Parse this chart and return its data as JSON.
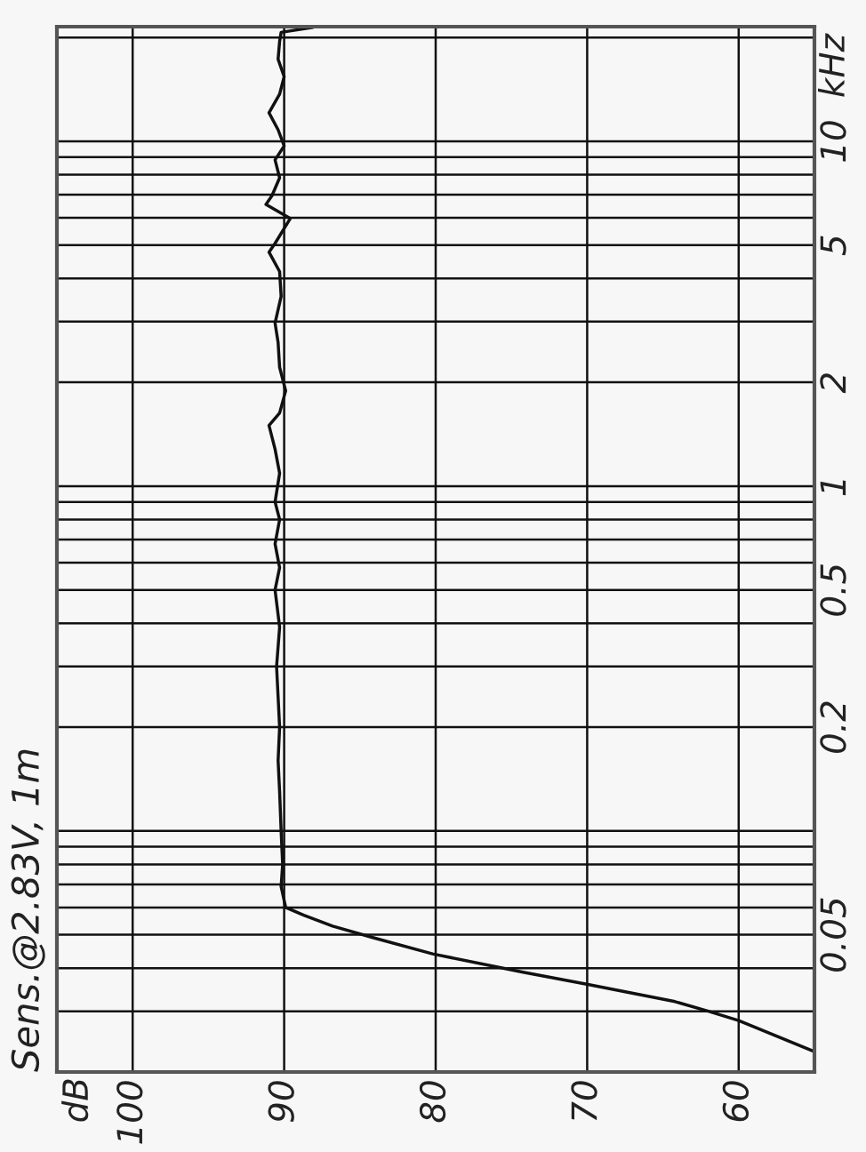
{
  "chart_data": {
    "type": "line",
    "title": "Sens.@2.83V, 1m",
    "ylabel": "kHz",
    "annotations": [
      "dB"
    ],
    "x": [
      55.1,
      60.0,
      62.0,
      64.2,
      70.1,
      74.3,
      80.2,
      84.1,
      86.8,
      88.7,
      89.9,
      90.2,
      90.1,
      90.2,
      90.3,
      90.4,
      90.3,
      90.5,
      90.3,
      90.6,
      90.3,
      90.6,
      90.3,
      90.6,
      90.3,
      90.6,
      91.0,
      90.3,
      89.9,
      90.3,
      90.4,
      90.6,
      90.2,
      90.3,
      91.0,
      90.6,
      89.6,
      91.2,
      90.8,
      90.3,
      90.6,
      90.0,
      90.4,
      91.0,
      90.3,
      90.0,
      90.4,
      90.3,
      90.2,
      88.1
    ],
    "series": [
      {
        "color": "#111111",
        "values": [
          0.023,
          0.0282,
          0.03,
          0.032,
          0.036,
          0.039,
          0.044,
          0.049,
          0.053,
          0.057,
          0.06,
          0.069,
          0.08,
          0.1,
          0.13,
          0.16,
          0.2,
          0.3,
          0.39,
          0.5,
          0.58,
          0.68,
          0.8,
          0.9,
          1.09,
          1.28,
          1.5,
          1.63,
          1.89,
          2.21,
          2.61,
          2.97,
          3.55,
          4.19,
          4.77,
          5.06,
          5.97,
          6.56,
          6.96,
          7.84,
          8.83,
          9.7,
          10.8,
          12.1,
          13.7,
          15.4,
          17.3,
          19.5,
          20.7,
          21.4
        ]
      }
    ],
    "xlim": [
      105,
      55
    ],
    "ylim": [
      0.02,
      21.5
    ],
    "xticks": [
      100,
      90,
      80,
      70,
      60
    ],
    "yticks": [
      {
        "value": 0.03,
        "label": null
      },
      {
        "value": 0.04,
        "label": null
      },
      0.05,
      {
        "value": 0.06,
        "label": null
      },
      {
        "value": 0.07,
        "label": null
      },
      {
        "value": 0.08,
        "label": null
      },
      {
        "value": 0.09,
        "label": null
      },
      {
        "value": 0.1,
        "label": null
      },
      0.2,
      {
        "value": 0.3,
        "label": null
      },
      {
        "value": 0.4,
        "label": null
      },
      0.5,
      {
        "value": 0.6,
        "label": null
      },
      {
        "value": 0.7,
        "label": null
      },
      {
        "value": 0.8,
        "label": null
      },
      {
        "value": 0.9,
        "label": null
      },
      1,
      2,
      {
        "value": 3,
        "label": null
      },
      {
        "value": 4,
        "label": null
      },
      5,
      {
        "value": 6,
        "label": null
      },
      {
        "value": 7,
        "label": null
      },
      {
        "value": 8,
        "label": null
      },
      {
        "value": 9,
        "label": null
      },
      10,
      {
        "value": 20,
        "label": null
      }
    ],
    "log": "y",
    "grid": true
  }
}
